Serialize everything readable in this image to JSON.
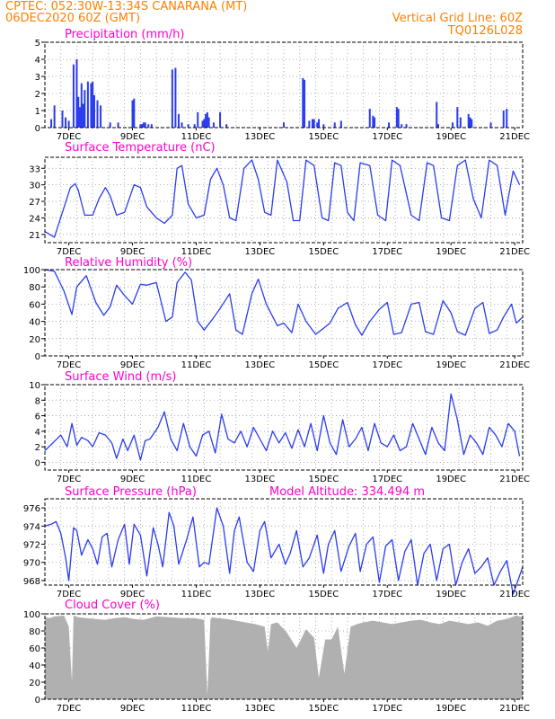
{
  "header": {
    "line1": "CPTEC:   052:30W-13:34S   CANARANA (MT)",
    "line2": "06DEC2020 60Z (GMT)",
    "grid_note": "Vertical Grid Line: 60Z",
    "code": "TQ0126L028"
  },
  "colors": {
    "header": "#ff8000",
    "title": "#ff00cc",
    "series": "#2a3cf0",
    "cloud": "#b0b0b0",
    "grid": "#9a9a9a"
  },
  "x_axis": {
    "start": "06DEC2020 06Z",
    "end": "21DEC2020 00Z",
    "tick_labels": [
      "7DEC",
      "9DEC",
      "11DEC",
      "13DEC",
      "15DEC",
      "17DEC",
      "19DEC",
      "21DEC"
    ]
  },
  "chart_data": [
    {
      "type": "bar",
      "title": "Precipitation (mm/h)",
      "ylim": [
        0,
        5
      ],
      "yticks": [
        "0",
        "1",
        "2",
        "3",
        "4",
        "5"
      ],
      "grid": true,
      "x": [
        0.2,
        0.3,
        0.55,
        0.65,
        0.75,
        0.9,
        1.0,
        1.05,
        1.1,
        1.15,
        1.2,
        1.25,
        1.35,
        1.45,
        1.5,
        1.55,
        1.65,
        1.75,
        2.05,
        2.3,
        2.75,
        2.8,
        3.0,
        3.05,
        3.1,
        3.15,
        3.25,
        3.35,
        4.0,
        4.1,
        4.2,
        4.3,
        4.5,
        4.7,
        4.8,
        4.95,
        5.0,
        5.05,
        5.1,
        5.15,
        5.3,
        5.5,
        5.7,
        7.5,
        8.1,
        8.15,
        8.3,
        8.4,
        8.45,
        8.55,
        8.6,
        8.75,
        9.1,
        9.3,
        10.2,
        10.3,
        10.35,
        10.8,
        11.05,
        11.1,
        11.2,
        11.35,
        12.3,
        12.35,
        12.8,
        12.95,
        13.05,
        13.3,
        13.35,
        13.4,
        14.0,
        14.4,
        14.5
      ],
      "values": [
        0.5,
        1.3,
        1.0,
        0.6,
        0.4,
        3.7,
        4.0,
        1.8,
        1.2,
        2.6,
        1.4,
        2.2,
        2.7,
        2.6,
        2.7,
        1.9,
        1.6,
        1.3,
        0.3,
        0.3,
        1.6,
        1.7,
        0.2,
        0.2,
        0.3,
        0.3,
        0.2,
        0.2,
        3.4,
        3.5,
        0.8,
        0.3,
        0.2,
        0.2,
        0.9,
        0.4,
        0.5,
        0.8,
        0.9,
        0.6,
        0.3,
        0.9,
        0.2,
        0.3,
        2.9,
        2.8,
        0.4,
        0.5,
        0.5,
        0.3,
        0.5,
        0.2,
        0.3,
        0.4,
        1.1,
        0.7,
        0.6,
        0.3,
        1.2,
        1.1,
        0.2,
        0.2,
        1.5,
        0.2,
        0.3,
        1.2,
        0.6,
        0.8,
        0.6,
        0.5,
        0.3,
        1.0,
        1.1
      ]
    },
    {
      "type": "line",
      "title": "Surface Temperature (nC)",
      "ylim": [
        19.5,
        35
      ],
      "yticks": [
        "21",
        "24",
        "27",
        "30",
        "33"
      ],
      "grid": true,
      "x": [
        0,
        0.15,
        0.3,
        0.55,
        0.8,
        0.95,
        1.05,
        1.25,
        1.5,
        1.7,
        1.9,
        2.05,
        2.25,
        2.5,
        2.8,
        3.0,
        3.2,
        3.5,
        3.75,
        4.0,
        4.15,
        4.3,
        4.5,
        4.75,
        5.0,
        5.2,
        5.4,
        5.6,
        5.8,
        6.0,
        6.25,
        6.5,
        6.7,
        6.9,
        7.1,
        7.3,
        7.6,
        7.8,
        8.0,
        8.2,
        8.45,
        8.7,
        8.9,
        9.1,
        9.3,
        9.5,
        9.7,
        9.9,
        10.2,
        10.45,
        10.7,
        10.9,
        11.15,
        11.5,
        11.75,
        12.0,
        12.2,
        12.45,
        12.7,
        12.95,
        13.2,
        13.45,
        13.7,
        13.95,
        14.2,
        14.45,
        14.7,
        14.9
      ],
      "values": [
        21.5,
        21.0,
        20.5,
        25.0,
        29.5,
        30.2,
        29.0,
        24.5,
        24.5,
        27.5,
        29.5,
        28.0,
        24.5,
        25.0,
        30.0,
        29.5,
        26.0,
        24.0,
        23.0,
        24.5,
        33.0,
        33.5,
        26.5,
        24.0,
        24.5,
        31.0,
        33.0,
        30.0,
        24.0,
        23.5,
        33.0,
        34.5,
        31.0,
        25.0,
        24.5,
        34.5,
        30.5,
        23.5,
        23.5,
        34.5,
        33.5,
        24.0,
        23.5,
        34.0,
        33.5,
        25.0,
        23.5,
        34.0,
        33.5,
        24.5,
        23.5,
        34.5,
        33.5,
        24.5,
        23.5,
        34.0,
        33.5,
        24.0,
        23.5,
        33.5,
        34.5,
        27.5,
        24.0,
        34.5,
        33.5,
        24.5,
        32.5,
        30.0
      ]
    },
    {
      "type": "line",
      "title": "Relative Humidity (%)",
      "ylim": [
        0,
        100
      ],
      "yticks": [
        "0",
        "20",
        "40",
        "60",
        "80",
        "100"
      ],
      "grid": true,
      "x": [
        0,
        0.3,
        0.6,
        0.85,
        1.0,
        1.3,
        1.6,
        1.85,
        2.05,
        2.25,
        2.5,
        2.75,
        3.0,
        3.2,
        3.5,
        3.8,
        4.0,
        4.15,
        4.4,
        4.6,
        4.8,
        5.0,
        5.25,
        5.5,
        5.8,
        6.0,
        6.2,
        6.5,
        6.7,
        6.95,
        7.3,
        7.5,
        7.75,
        7.95,
        8.2,
        8.5,
        8.75,
        8.95,
        9.2,
        9.5,
        9.75,
        9.95,
        10.2,
        10.5,
        10.75,
        10.95,
        11.2,
        11.5,
        11.75,
        11.95,
        12.2,
        12.5,
        12.75,
        12.95,
        13.2,
        13.5,
        13.75,
        13.95,
        14.2,
        14.4,
        14.65,
        14.8,
        15.0
      ],
      "values": [
        100,
        98,
        75,
        48,
        80,
        93,
        62,
        47,
        57,
        82,
        70,
        60,
        83,
        82,
        85,
        40,
        45,
        85,
        97,
        88,
        40,
        30,
        42,
        55,
        72,
        30,
        25,
        72,
        89,
        60,
        35,
        38,
        27,
        60,
        40,
        25,
        32,
        38,
        55,
        62,
        36,
        24,
        40,
        54,
        62,
        25,
        27,
        60,
        62,
        28,
        25,
        64,
        50,
        28,
        24,
        55,
        62,
        26,
        30,
        45,
        60,
        38,
        45
      ]
    },
    {
      "type": "line",
      "title": "Surface Wind (m/s)",
      "ylim": [
        -1,
        10
      ],
      "yticks": [
        "0",
        "2",
        "4",
        "6",
        "8",
        "10"
      ],
      "grid": true,
      "x": [
        0,
        0.25,
        0.5,
        0.7,
        0.85,
        1.0,
        1.15,
        1.35,
        1.5,
        1.7,
        1.9,
        2.1,
        2.25,
        2.45,
        2.6,
        2.8,
        3.0,
        3.15,
        3.3,
        3.55,
        3.75,
        3.95,
        4.15,
        4.35,
        4.55,
        4.75,
        4.95,
        5.15,
        5.35,
        5.55,
        5.75,
        5.95,
        6.15,
        6.35,
        6.55,
        6.75,
        6.95,
        7.15,
        7.35,
        7.55,
        7.75,
        7.95,
        8.15,
        8.35,
        8.55,
        8.75,
        8.95,
        9.15,
        9.35,
        9.55,
        9.75,
        9.95,
        10.15,
        10.35,
        10.55,
        10.75,
        10.95,
        11.15,
        11.35,
        11.55,
        11.75,
        11.95,
        12.15,
        12.35,
        12.55,
        12.75,
        12.95,
        13.15,
        13.35,
        13.55,
        13.75,
        13.95,
        14.15,
        14.35,
        14.55,
        14.75,
        14.9
      ],
      "values": [
        1.5,
        2.5,
        3.5,
        2.0,
        5.0,
        2.2,
        3.2,
        2.8,
        2.0,
        3.8,
        3.5,
        2.5,
        0.5,
        3.0,
        1.5,
        3.5,
        0.3,
        2.8,
        3.0,
        4.5,
        6.5,
        3.0,
        1.5,
        5.0,
        2.0,
        0.8,
        3.5,
        4.0,
        1.2,
        6.2,
        3.0,
        2.5,
        4.0,
        2.0,
        4.5,
        3.0,
        1.5,
        4.0,
        2.5,
        3.8,
        1.8,
        4.2,
        2.0,
        5.0,
        1.5,
        6.0,
        2.5,
        1.0,
        5.5,
        2.0,
        3.0,
        4.5,
        1.5,
        5.0,
        2.5,
        2.0,
        3.5,
        1.5,
        2.0,
        5.0,
        3.0,
        1.0,
        4.5,
        2.5,
        1.5,
        8.8,
        5.5,
        1.0,
        3.5,
        2.5,
        1.0,
        4.5,
        3.5,
        2.0,
        5.0,
        4.0,
        0.8
      ]
    },
    {
      "type": "line",
      "title": "Surface Pressure (hPa)",
      "annotation": "Model Altitude: 334.494 m",
      "ylim": [
        967.5,
        977
      ],
      "yticks": [
        "968",
        "970",
        "972",
        "974",
        "976"
      ],
      "grid": true,
      "x": [
        0,
        0.2,
        0.35,
        0.5,
        0.65,
        0.75,
        0.9,
        1.0,
        1.15,
        1.35,
        1.5,
        1.65,
        1.8,
        1.95,
        2.1,
        2.3,
        2.5,
        2.65,
        2.8,
        3.0,
        3.2,
        3.4,
        3.55,
        3.7,
        3.9,
        4.05,
        4.2,
        4.45,
        4.65,
        4.85,
        5.0,
        5.15,
        5.4,
        5.6,
        5.8,
        5.95,
        6.1,
        6.35,
        6.55,
        6.75,
        6.9,
        7.1,
        7.35,
        7.55,
        7.7,
        7.9,
        8.1,
        8.3,
        8.55,
        8.75,
        8.9,
        9.1,
        9.3,
        9.55,
        9.75,
        9.9,
        10.1,
        10.3,
        10.5,
        10.7,
        10.9,
        11.1,
        11.3,
        11.5,
        11.7,
        11.9,
        12.1,
        12.3,
        12.5,
        12.7,
        12.9,
        13.1,
        13.3,
        13.5,
        13.7,
        13.9,
        14.1,
        14.3,
        14.5,
        14.7,
        14.9,
        15.0
      ],
      "values": [
        974.0,
        974.2,
        974.5,
        973.2,
        970.5,
        968.0,
        973.8,
        973.5,
        970.8,
        972.5,
        971.5,
        969.8,
        972.8,
        973.2,
        969.5,
        972.5,
        974.2,
        969.8,
        974.2,
        973.0,
        968.5,
        973.8,
        972.0,
        969.5,
        975.5,
        974.0,
        969.8,
        972.5,
        975.0,
        969.5,
        970.0,
        969.8,
        976.0,
        974.0,
        968.8,
        973.5,
        975.0,
        970.0,
        969.0,
        973.5,
        974.5,
        970.5,
        972.0,
        969.8,
        971.0,
        973.5,
        969.5,
        970.5,
        973.0,
        968.8,
        972.0,
        973.5,
        969.0,
        971.8,
        973.2,
        969.0,
        972.0,
        972.8,
        967.8,
        971.8,
        972.5,
        968.0,
        971.2,
        972.5,
        967.5,
        971.0,
        972.0,
        968.0,
        971.5,
        972.0,
        967.5,
        970.0,
        971.5,
        968.8,
        969.5,
        970.5,
        967.5,
        969.0,
        970.2,
        966.5,
        968.5,
        969.5
      ]
    },
    {
      "type": "area",
      "title": "Cloud Cover (%)",
      "ylim": [
        0,
        100
      ],
      "yticks": [
        "0",
        "20",
        "40",
        "60",
        "80",
        "100"
      ],
      "grid": true,
      "x": [
        0,
        0.15,
        0.3,
        0.6,
        0.75,
        0.85,
        0.9,
        1.05,
        1.3,
        1.6,
        1.9,
        2.2,
        2.5,
        2.8,
        3.1,
        3.5,
        3.9,
        4.3,
        4.7,
        5.0,
        5.1,
        5.2,
        5.25,
        5.4,
        5.7,
        6.0,
        6.3,
        6.6,
        6.9,
        7.0,
        7.1,
        7.3,
        7.6,
        7.9,
        8.2,
        8.45,
        8.6,
        8.8,
        9.0,
        9.2,
        9.4,
        9.6,
        9.8,
        10.0,
        10.3,
        10.6,
        10.9,
        11.2,
        11.5,
        11.8,
        12.1,
        12.4,
        12.7,
        13.0,
        13.3,
        13.6,
        13.9,
        14.2,
        14.5,
        14.8,
        15.0
      ],
      "values": [
        96,
        95,
        97,
        98,
        85,
        20,
        98,
        96,
        95,
        94,
        93,
        95,
        96,
        94,
        93,
        97,
        96,
        95,
        95,
        93,
        5,
        94,
        96,
        95,
        94,
        92,
        90,
        88,
        85,
        55,
        88,
        90,
        78,
        60,
        82,
        72,
        25,
        70,
        70,
        85,
        30,
        85,
        88,
        90,
        92,
        90,
        88,
        90,
        92,
        93,
        90,
        88,
        92,
        90,
        88,
        90,
        86,
        92,
        94,
        98,
        96
      ]
    }
  ]
}
